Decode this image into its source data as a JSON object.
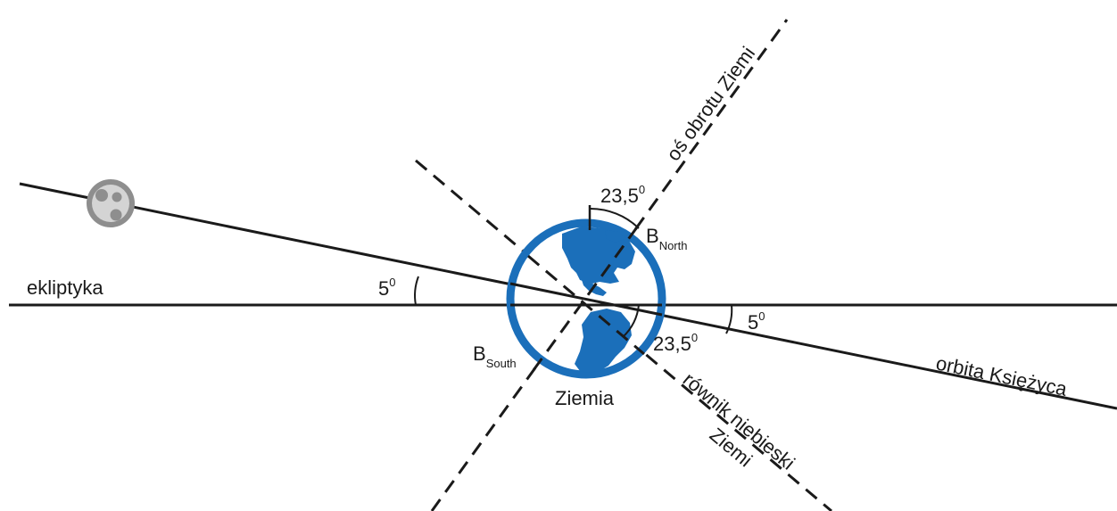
{
  "labels": {
    "ecliptic": "ekliptyka",
    "moon_orbit": "orbita Księżyca",
    "earth_axis": "oś obrotu Ziemi",
    "celestial_equator_line1": "równik niebieski",
    "celestial_equator_line2": "Ziemi",
    "earth": "Ziemia",
    "angle_left": "5",
    "angle_right": "5",
    "angle_top": "23,5",
    "angle_bottom": "23,5",
    "degree_sup": "0",
    "b_north_main": "B",
    "b_north_sub": "North",
    "b_south_main": "B",
    "b_south_sub": "South"
  },
  "colors": {
    "earth_blue": "#1b6fba",
    "line": "#1a1a1a",
    "moon_gray": "#8e8e8e",
    "moon_light": "#c9c9c9"
  },
  "icons": {
    "earth": "globe-americas-icon",
    "moon": "moon-icon"
  }
}
